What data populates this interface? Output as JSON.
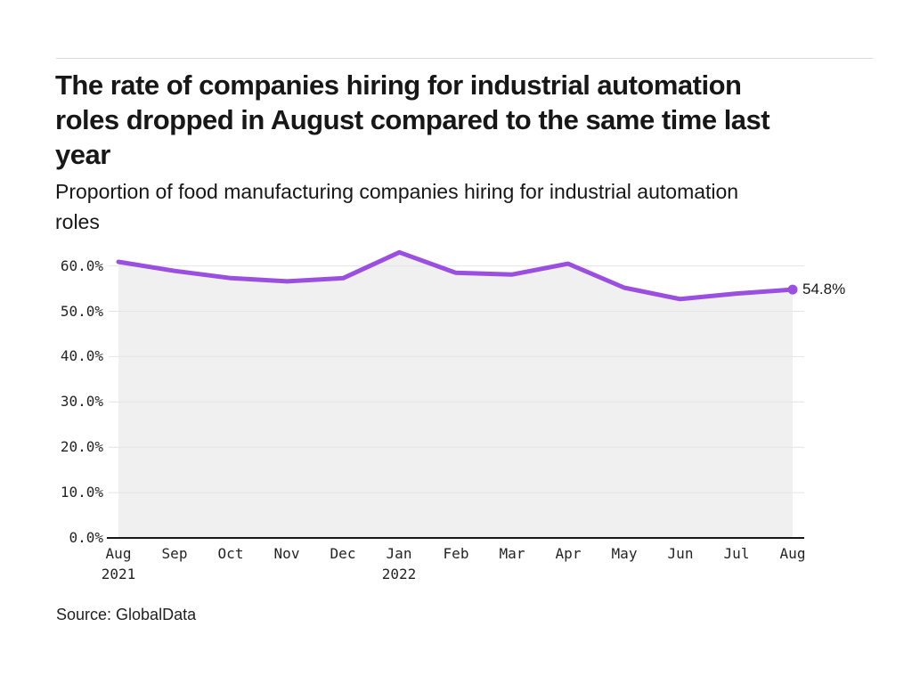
{
  "header": {
    "title_lines": [
      "The rate of companies hiring for industrial automation",
      "roles dropped in August compared to the same time last",
      "year"
    ],
    "subtitle_lines": [
      "Proportion of food manufacturing companies hiring for industrial automation",
      "roles"
    ]
  },
  "chart_data": {
    "type": "line",
    "area_fill": true,
    "title": "The rate of companies hiring for industrial automation roles dropped in August compared to the same time last year",
    "subtitle": "Proportion of food manufacturing companies hiring for industrial automation roles",
    "categories": [
      "Aug 2021",
      "Sep",
      "Oct",
      "Nov",
      "Dec",
      "Jan 2022",
      "Feb",
      "Mar",
      "Apr",
      "May",
      "Jun",
      "Jul",
      "Aug"
    ],
    "values": [
      60.9,
      58.9,
      57.3,
      56.6,
      57.3,
      63.0,
      58.5,
      58.1,
      60.5,
      55.2,
      52.7,
      53.9,
      54.8
    ],
    "x_ticks": [
      {
        "m": "Aug",
        "y": "2021"
      },
      {
        "m": "Sep"
      },
      {
        "m": "Oct"
      },
      {
        "m": "Nov"
      },
      {
        "m": "Dec"
      },
      {
        "m": "Jan",
        "y": "2022"
      },
      {
        "m": "Feb"
      },
      {
        "m": "Mar"
      },
      {
        "m": "Apr"
      },
      {
        "m": "May"
      },
      {
        "m": "Jun"
      },
      {
        "m": "Jul"
      },
      {
        "m": "Aug"
      }
    ],
    "y_ticks": [
      "0.0%",
      "10.0%",
      "20.0%",
      "30.0%",
      "40.0%",
      "50.0%",
      "60.0%"
    ],
    "ylim": [
      0,
      66
    ],
    "grid": "horizontal",
    "legend": "none",
    "end_label": "54.8%",
    "colors": {
      "line": "#9b4fe0",
      "dot": "#9b4fe0",
      "area": "#f0f0f0",
      "grid": "#e4e4e4",
      "axis": "#171717"
    }
  },
  "footer": {
    "source": "Source: GlobalData"
  }
}
